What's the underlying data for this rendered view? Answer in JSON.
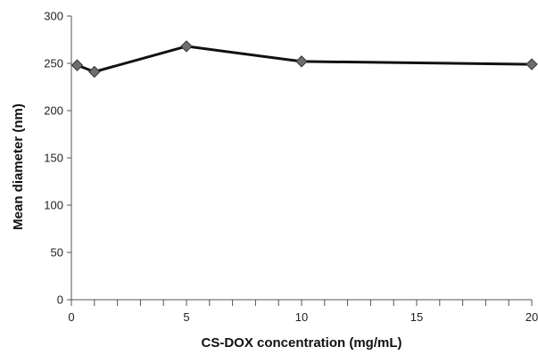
{
  "chart_data": {
    "type": "line",
    "xlabel": "CS-DOX concentration (mg/mL)",
    "ylabel": "Mean diameter (nm)",
    "xlim": [
      0,
      20
    ],
    "ylim": [
      0,
      300
    ],
    "x_ticks": [
      0,
      5,
      10,
      15,
      20
    ],
    "x_minor_step": 1,
    "y_ticks": [
      0,
      50,
      100,
      150,
      200,
      250,
      300
    ],
    "grid": false,
    "legend": "none",
    "series": [
      {
        "x": [
          0.25,
          1,
          5,
          10,
          20
        ],
        "y": [
          248,
          241,
          268,
          252,
          249
        ],
        "color": "#111111",
        "marker": "diamond",
        "marker_color": "#6e6e6e"
      }
    ]
  }
}
